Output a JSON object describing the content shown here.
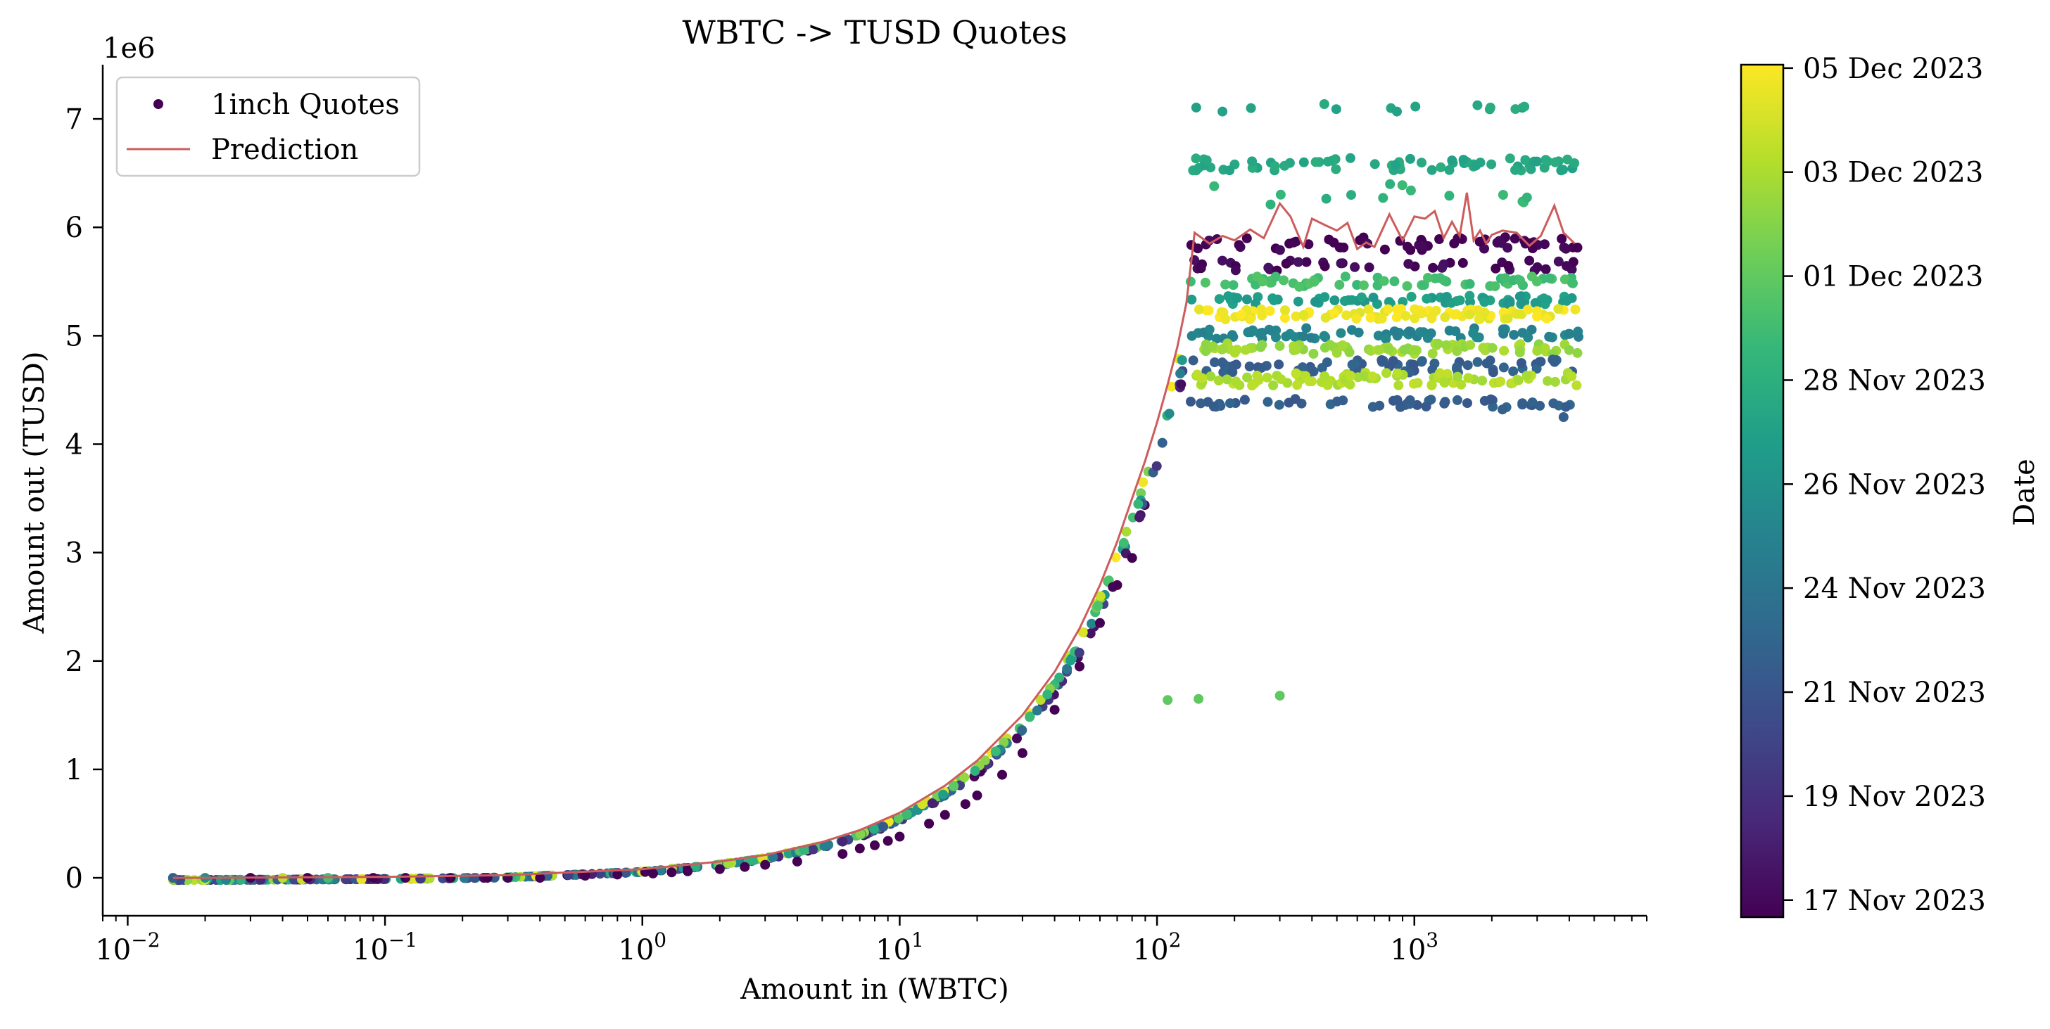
{
  "chart_data": {
    "type": "scatter",
    "title": "WBTC -> TUSD Quotes",
    "xlabel": "Amount in (WBTC)",
    "ylabel": "Amount out (TUSD)",
    "y_offset_label": "1e6",
    "x_scale": "log",
    "xlim": [
      0.008,
      8000
    ],
    "ylim": [
      -0.35,
      7.5
    ],
    "x_ticks": [
      0.01,
      0.1,
      1,
      10,
      100,
      1000
    ],
    "x_tick_labels": [
      {
        "base": "10",
        "exp": "−2"
      },
      {
        "base": "10",
        "exp": "−1"
      },
      {
        "base": "10",
        "exp": "0"
      },
      {
        "base": "10",
        "exp": "1"
      },
      {
        "base": "10",
        "exp": "2"
      },
      {
        "base": "10",
        "exp": "3"
      }
    ],
    "y_ticks": [
      0,
      1,
      2,
      3,
      4,
      5,
      6,
      7
    ],
    "y_tick_labels": [
      "0",
      "1",
      "2",
      "3",
      "4",
      "5",
      "6",
      "7"
    ],
    "grid": false,
    "legend": {
      "placement": "top-left",
      "entries": [
        "1inch Quotes",
        "Prediction"
      ]
    },
    "colors": {
      "prediction": "#cd5c5c",
      "viridis": [
        "#440154",
        "#482878",
        "#3e4989",
        "#31688e",
        "#26828e",
        "#1f9e89",
        "#35b779",
        "#6ece58",
        "#b5de2b",
        "#fde725"
      ]
    },
    "colorbar": {
      "label": "Date",
      "ticks": [
        {
          "label": "17 Nov 2023",
          "t": 0.02
        },
        {
          "label": "19 Nov 2023",
          "t": 0.142
        },
        {
          "label": "21 Nov 2023",
          "t": 0.264
        },
        {
          "label": "24 Nov 2023",
          "t": 0.386
        },
        {
          "label": "26 Nov 2023",
          "t": 0.508
        },
        {
          "label": "28 Nov 2023",
          "t": 0.63
        },
        {
          "label": "01 Dec 2023",
          "t": 0.752
        },
        {
          "label": "03 Dec 2023",
          "t": 0.874
        },
        {
          "label": "05 Dec 2023",
          "t": 0.996
        }
      ]
    },
    "series": [
      {
        "name": "Prediction",
        "kind": "line",
        "x": [
          0.015,
          0.03,
          0.1,
          0.3,
          1,
          2,
          3,
          5,
          7,
          10,
          15,
          20,
          30,
          40,
          50,
          60,
          70,
          80,
          90,
          100,
          110,
          120,
          130,
          140,
          160,
          180,
          200,
          230,
          260,
          300,
          330,
          370,
          400,
          450,
          500,
          550,
          600,
          650,
          700,
          800,
          900,
          1000,
          1100,
          1200,
          1300,
          1400,
          1500,
          1600,
          1700,
          1800,
          1900,
          2000,
          2200,
          2500,
          2800,
          3100,
          3500,
          3800,
          4200
        ],
        "y": [
          0.0,
          0.002,
          0.009,
          0.025,
          0.08,
          0.15,
          0.21,
          0.33,
          0.44,
          0.6,
          0.85,
          1.08,
          1.5,
          1.9,
          2.3,
          2.7,
          3.1,
          3.5,
          3.85,
          4.2,
          4.55,
          4.9,
          5.3,
          5.95,
          5.85,
          5.92,
          5.88,
          5.98,
          5.9,
          6.22,
          6.1,
          5.82,
          6.08,
          6.02,
          5.97,
          6.04,
          5.8,
          5.86,
          5.82,
          6.12,
          5.88,
          6.1,
          6.08,
          6.15,
          5.9,
          6.05,
          5.92,
          6.32,
          5.88,
          5.97,
          5.85,
          5.93,
          5.97,
          5.95,
          5.83,
          5.92,
          6.2,
          5.95,
          5.85
        ]
      },
      {
        "name": "1inch Quotes",
        "kind": "scatter",
        "colored_by": "date",
        "points_lower": [
          [
            0.015,
            0.0,
            0.3
          ],
          [
            0.02,
            0.0,
            0.5
          ],
          [
            0.03,
            0.0,
            0.0
          ],
          [
            0.04,
            0.0,
            0.9
          ],
          [
            0.05,
            0.0,
            0.0
          ],
          [
            0.06,
            0.0,
            0.7
          ],
          [
            0.09,
            0.0,
            0.0
          ],
          [
            0.12,
            0.0,
            0.0
          ],
          [
            0.18,
            0.0,
            0.0
          ],
          [
            0.25,
            0.0,
            0.0
          ],
          [
            0.3,
            0.0,
            0.0
          ],
          [
            0.4,
            0.0,
            0.0
          ],
          [
            0.6,
            0.02,
            0.0
          ],
          [
            0.8,
            0.03,
            0.0
          ],
          [
            1.1,
            0.04,
            0.0
          ],
          [
            1.3,
            0.05,
            0.0
          ],
          [
            1.5,
            0.06,
            0.0
          ],
          [
            2,
            0.08,
            0.0
          ],
          [
            2.5,
            0.1,
            0.0
          ],
          [
            3,
            0.12,
            0.0
          ],
          [
            4,
            0.15,
            0.0
          ],
          [
            6,
            0.22,
            0.0
          ],
          [
            7,
            0.27,
            0.0
          ],
          [
            8,
            0.3,
            0.0
          ],
          [
            9,
            0.34,
            0.0
          ],
          [
            10,
            0.38,
            0.0
          ],
          [
            13,
            0.5,
            0.0
          ],
          [
            15,
            0.58,
            0.0
          ],
          [
            18,
            0.68,
            0.0
          ],
          [
            20,
            0.76,
            0.0
          ],
          [
            25,
            0.95,
            0.0
          ],
          [
            30,
            1.15,
            0.0
          ],
          [
            40,
            1.55,
            0.0
          ],
          [
            50,
            1.95,
            0.0
          ],
          [
            60,
            2.35,
            0.0
          ],
          [
            70,
            2.7,
            0.0
          ],
          [
            80,
            2.95,
            0.0
          ]
        ],
        "points_upper_bands": [
          {
            "y": 7.1,
            "t": 0.6,
            "n": 14,
            "spread": 0.08
          },
          {
            "y": 6.58,
            "t": 0.6,
            "n": 70,
            "spread": 0.12
          },
          {
            "y": 6.3,
            "t": 0.65,
            "n": 14,
            "spread": 0.2
          },
          {
            "y": 5.85,
            "t": 0.0,
            "n": 60,
            "spread": 0.12
          },
          {
            "y": 5.65,
            "t": 0.02,
            "n": 40,
            "spread": 0.1
          },
          {
            "y": 5.5,
            "t": 0.7,
            "n": 60,
            "spread": 0.1
          },
          {
            "y": 5.33,
            "t": 0.55,
            "n": 70,
            "spread": 0.08
          },
          {
            "y": 5.2,
            "t": 0.98,
            "n": 90,
            "spread": 0.1
          },
          {
            "y": 5.02,
            "t": 0.45,
            "n": 70,
            "spread": 0.1
          },
          {
            "y": 4.88,
            "t": 0.85,
            "n": 80,
            "spread": 0.1
          },
          {
            "y": 4.72,
            "t": 0.3,
            "n": 70,
            "spread": 0.12
          },
          {
            "y": 4.6,
            "t": 0.88,
            "n": 90,
            "spread": 0.12
          },
          {
            "y": 4.38,
            "t": 0.3,
            "n": 50,
            "spread": 0.08
          }
        ],
        "outliers": [
          [
            110,
            1.64,
            0.75
          ],
          [
            145,
            1.65,
            0.75
          ],
          [
            300,
            1.68,
            0.75
          ],
          [
            3800,
            4.25,
            0.3
          ],
          [
            2200,
            4.32,
            0.3
          ]
        ]
      }
    ]
  }
}
